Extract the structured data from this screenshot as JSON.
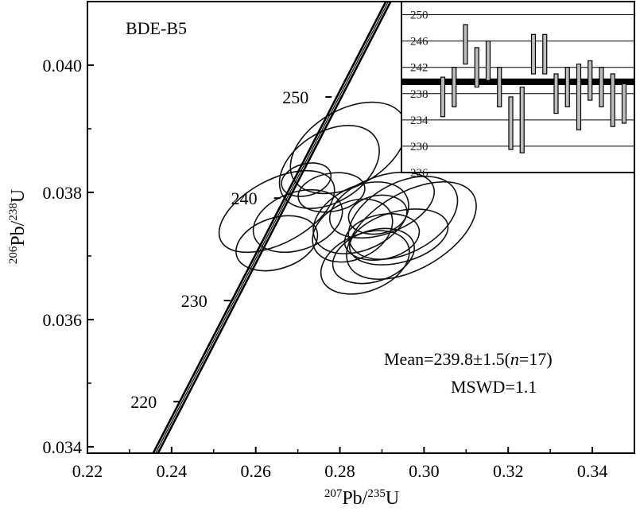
{
  "chart_data": {
    "type": "scatter",
    "title": "BDE-B5",
    "xlabel": {
      "prefix": "207",
      "base": "Pb/",
      "sup2": "235",
      "tail": "U"
    },
    "ylabel": {
      "prefix": "206",
      "base": "Pb/",
      "sup2": "238",
      "tail": "U"
    },
    "xlim": [
      0.22,
      0.35
    ],
    "ylim": [
      0.0339,
      0.041
    ],
    "xticks": [
      0.22,
      0.24,
      0.26,
      0.28,
      0.3,
      0.32,
      0.34
    ],
    "xtick_labels": [
      "0.22",
      "0.24",
      "0.26",
      "0.28",
      "0.30",
      "0.32",
      "0.34"
    ],
    "yticks": [
      0.034,
      0.036,
      0.038,
      0.04
    ],
    "ytick_labels": [
      "0.034",
      "0.036",
      "0.038",
      "0.040"
    ],
    "concordia_ages": [
      {
        "label": "220",
        "age": 220,
        "x": 0.2412,
        "y": 0.03471
      },
      {
        "label": "230",
        "age": 230,
        "x": 0.2532,
        "y": 0.0363
      },
      {
        "label": "240",
        "age": 240,
        "x": 0.2651,
        "y": 0.03791
      },
      {
        "label": "250",
        "age": 250,
        "x": 0.2773,
        "y": 0.0395
      }
    ],
    "concordia_band": {
      "x_start": 0.2362,
      "y_start": 0.0339,
      "x_end": 0.2915,
      "y_end": 0.041
    },
    "ellipses": [
      {
        "x": 0.265,
        "y": 0.0377,
        "rx": 0.015,
        "ry": 0.0005,
        "angle": 28
      },
      {
        "x": 0.27,
        "y": 0.03755,
        "rx": 0.011,
        "ry": 0.00045,
        "angle": 20
      },
      {
        "x": 0.2775,
        "y": 0.0384,
        "rx": 0.013,
        "ry": 0.00055,
        "angle": 32
      },
      {
        "x": 0.282,
        "y": 0.0387,
        "rx": 0.015,
        "ry": 0.0006,
        "angle": 30
      },
      {
        "x": 0.265,
        "y": 0.0372,
        "rx": 0.01,
        "ry": 0.0004,
        "angle": 18
      },
      {
        "x": 0.278,
        "y": 0.038,
        "rx": 0.008,
        "ry": 0.0003,
        "angle": 10
      },
      {
        "x": 0.285,
        "y": 0.0376,
        "rx": 0.012,
        "ry": 0.0005,
        "angle": 25
      },
      {
        "x": 0.29,
        "y": 0.0378,
        "rx": 0.013,
        "ry": 0.00045,
        "angle": 20
      },
      {
        "x": 0.295,
        "y": 0.0376,
        "rx": 0.014,
        "ry": 0.00055,
        "angle": 28
      },
      {
        "x": 0.294,
        "y": 0.0373,
        "rx": 0.012,
        "ry": 0.0004,
        "angle": 15
      },
      {
        "x": 0.288,
        "y": 0.037,
        "rx": 0.01,
        "ry": 0.0004,
        "angle": 18
      },
      {
        "x": 0.286,
        "y": 0.0369,
        "rx": 0.011,
        "ry": 0.00045,
        "angle": 22
      },
      {
        "x": 0.29,
        "y": 0.0373,
        "rx": 0.009,
        "ry": 0.00035,
        "angle": 12
      },
      {
        "x": 0.283,
        "y": 0.0374,
        "rx": 0.01,
        "ry": 0.00045,
        "angle": 25
      },
      {
        "x": 0.297,
        "y": 0.0374,
        "rx": 0.017,
        "ry": 0.0006,
        "angle": 30
      },
      {
        "x": 0.272,
        "y": 0.0382,
        "rx": 0.006,
        "ry": 0.00025,
        "angle": 15
      },
      {
        "x": 0.289,
        "y": 0.03765,
        "rx": 0.007,
        "ry": 0.0003,
        "angle": 10
      }
    ],
    "inset": {
      "ylim": [
        226,
        252
      ],
      "yticks": [
        226,
        230,
        234,
        238,
        242,
        246,
        250
      ],
      "ytick_labels": [
        "226",
        "230",
        "234",
        "238",
        "242",
        "246",
        "250"
      ],
      "mean": 239.8,
      "mean_band": [
        239.3,
        240.3
      ],
      "bars": [
        {
          "center": 237.5,
          "err": 3.0
        },
        {
          "center": 239.0,
          "err": 3.0
        },
        {
          "center": 245.5,
          "err": 3.0
        },
        {
          "center": 242.0,
          "err": 3.0
        },
        {
          "center": 243.0,
          "err": 3.0
        },
        {
          "center": 239.0,
          "err": 3.0
        },
        {
          "center": 233.5,
          "err": 4.0
        },
        {
          "center": 234.0,
          "err": 5.0
        },
        {
          "center": 244.0,
          "err": 3.0
        },
        {
          "center": 244.0,
          "err": 3.0
        },
        {
          "center": 238.0,
          "err": 3.0
        },
        {
          "center": 239.0,
          "err": 3.0
        },
        {
          "center": 237.5,
          "err": 5.0
        },
        {
          "center": 240.0,
          "err": 3.0
        },
        {
          "center": 239.0,
          "err": 3.0
        },
        {
          "center": 237.0,
          "err": 4.0
        },
        {
          "center": 236.5,
          "err": 3.0
        }
      ]
    },
    "mean_text": {
      "prefix": "Mean=239.8±1.5(",
      "n_italic": "n",
      "suffix": "=17)"
    },
    "mswd_text": "MSWD=1.1"
  }
}
